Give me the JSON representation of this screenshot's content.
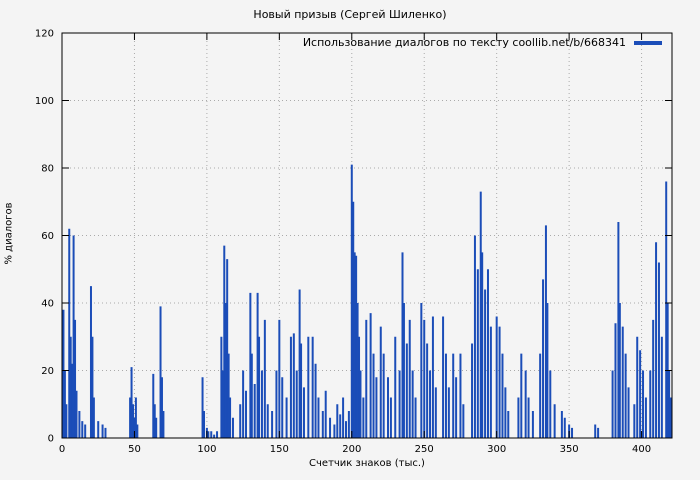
{
  "chart_data": {
    "type": "bar",
    "style": "impulses",
    "title": "Новый призыв (Сергей Шиленко)",
    "legend": "Использование диалогов по тексту coollib.net/b/668341",
    "xlabel": "Счетчик знаков (тыс.)",
    "ylabel": "% диалогов",
    "xlim": [
      0,
      421
    ],
    "ylim": [
      0,
      120
    ],
    "xticks": [
      0,
      50,
      100,
      150,
      200,
      250,
      300,
      350,
      400
    ],
    "yticks": [
      0,
      20,
      40,
      60,
      80,
      100,
      120
    ],
    "grid": true,
    "legend_position": "top-right",
    "bar_color": "#1b4db8",
    "grid_color": "#aaaaaa",
    "frame_color": "#000000",
    "points": [
      [
        1,
        38
      ],
      [
        2,
        20
      ],
      [
        3,
        10
      ],
      [
        5,
        62
      ],
      [
        6,
        30
      ],
      [
        7,
        22
      ],
      [
        8,
        60
      ],
      [
        9,
        35
      ],
      [
        10,
        14
      ],
      [
        12,
        8
      ],
      [
        14,
        5
      ],
      [
        16,
        4
      ],
      [
        20,
        45
      ],
      [
        21,
        30
      ],
      [
        22,
        12
      ],
      [
        25,
        5
      ],
      [
        28,
        4
      ],
      [
        30,
        3
      ],
      [
        47,
        12
      ],
      [
        48,
        21
      ],
      [
        49,
        10
      ],
      [
        50,
        6
      ],
      [
        51,
        12
      ],
      [
        52,
        4
      ],
      [
        63,
        19
      ],
      [
        64,
        10
      ],
      [
        65,
        6
      ],
      [
        68,
        39
      ],
      [
        69,
        18
      ],
      [
        70,
        8
      ],
      [
        97,
        18
      ],
      [
        98,
        8
      ],
      [
        100,
        3
      ],
      [
        101,
        2
      ],
      [
        103,
        2
      ],
      [
        105,
        1
      ],
      [
        107,
        2
      ],
      [
        110,
        30
      ],
      [
        111,
        20
      ],
      [
        112,
        57
      ],
      [
        113,
        40
      ],
      [
        114,
        53
      ],
      [
        115,
        25
      ],
      [
        116,
        12
      ],
      [
        118,
        6
      ],
      [
        123,
        10
      ],
      [
        125,
        20
      ],
      [
        127,
        14
      ],
      [
        130,
        43
      ],
      [
        131,
        25
      ],
      [
        133,
        16
      ],
      [
        135,
        43
      ],
      [
        136,
        30
      ],
      [
        138,
        20
      ],
      [
        140,
        35
      ],
      [
        142,
        10
      ],
      [
        145,
        8
      ],
      [
        148,
        20
      ],
      [
        150,
        35
      ],
      [
        152,
        18
      ],
      [
        155,
        12
      ],
      [
        158,
        30
      ],
      [
        160,
        31
      ],
      [
        162,
        20
      ],
      [
        164,
        44
      ],
      [
        165,
        28
      ],
      [
        167,
        15
      ],
      [
        170,
        30
      ],
      [
        173,
        30
      ],
      [
        175,
        22
      ],
      [
        177,
        12
      ],
      [
        180,
        8
      ],
      [
        182,
        14
      ],
      [
        185,
        6
      ],
      [
        188,
        4
      ],
      [
        190,
        10
      ],
      [
        192,
        7
      ],
      [
        194,
        12
      ],
      [
        196,
        5
      ],
      [
        198,
        8
      ],
      [
        200,
        81
      ],
      [
        201,
        70
      ],
      [
        202,
        55
      ],
      [
        203,
        54
      ],
      [
        204,
        40
      ],
      [
        205,
        30
      ],
      [
        206,
        20
      ],
      [
        208,
        12
      ],
      [
        210,
        35
      ],
      [
        213,
        37
      ],
      [
        215,
        25
      ],
      [
        217,
        18
      ],
      [
        220,
        33
      ],
      [
        222,
        25
      ],
      [
        225,
        18
      ],
      [
        227,
        12
      ],
      [
        230,
        30
      ],
      [
        233,
        20
      ],
      [
        235,
        55
      ],
      [
        236,
        40
      ],
      [
        238,
        28
      ],
      [
        240,
        35
      ],
      [
        242,
        20
      ],
      [
        244,
        12
      ],
      [
        248,
        40
      ],
      [
        250,
        35
      ],
      [
        252,
        28
      ],
      [
        254,
        20
      ],
      [
        256,
        36
      ],
      [
        258,
        15
      ],
      [
        263,
        36
      ],
      [
        265,
        25
      ],
      [
        267,
        15
      ],
      [
        270,
        25
      ],
      [
        272,
        18
      ],
      [
        275,
        25
      ],
      [
        277,
        10
      ],
      [
        283,
        28
      ],
      [
        285,
        60
      ],
      [
        287,
        50
      ],
      [
        289,
        73
      ],
      [
        290,
        55
      ],
      [
        292,
        44
      ],
      [
        294,
        50
      ],
      [
        296,
        33
      ],
      [
        300,
        36
      ],
      [
        302,
        33
      ],
      [
        304,
        25
      ],
      [
        306,
        15
      ],
      [
        308,
        8
      ],
      [
        315,
        12
      ],
      [
        317,
        25
      ],
      [
        320,
        20
      ],
      [
        322,
        12
      ],
      [
        325,
        8
      ],
      [
        330,
        25
      ],
      [
        332,
        47
      ],
      [
        334,
        63
      ],
      [
        335,
        40
      ],
      [
        337,
        20
      ],
      [
        340,
        10
      ],
      [
        345,
        8
      ],
      [
        347,
        6
      ],
      [
        350,
        4
      ],
      [
        352,
        3
      ],
      [
        368,
        4
      ],
      [
        370,
        3
      ],
      [
        380,
        20
      ],
      [
        382,
        34
      ],
      [
        384,
        64
      ],
      [
        385,
        40
      ],
      [
        387,
        33
      ],
      [
        389,
        25
      ],
      [
        391,
        15
      ],
      [
        395,
        10
      ],
      [
        397,
        30
      ],
      [
        399,
        26
      ],
      [
        401,
        20
      ],
      [
        403,
        12
      ],
      [
        406,
        20
      ],
      [
        408,
        35
      ],
      [
        410,
        58
      ],
      [
        412,
        52
      ],
      [
        414,
        30
      ],
      [
        417,
        76
      ],
      [
        418,
        40
      ],
      [
        419,
        20
      ],
      [
        420,
        12
      ]
    ]
  }
}
